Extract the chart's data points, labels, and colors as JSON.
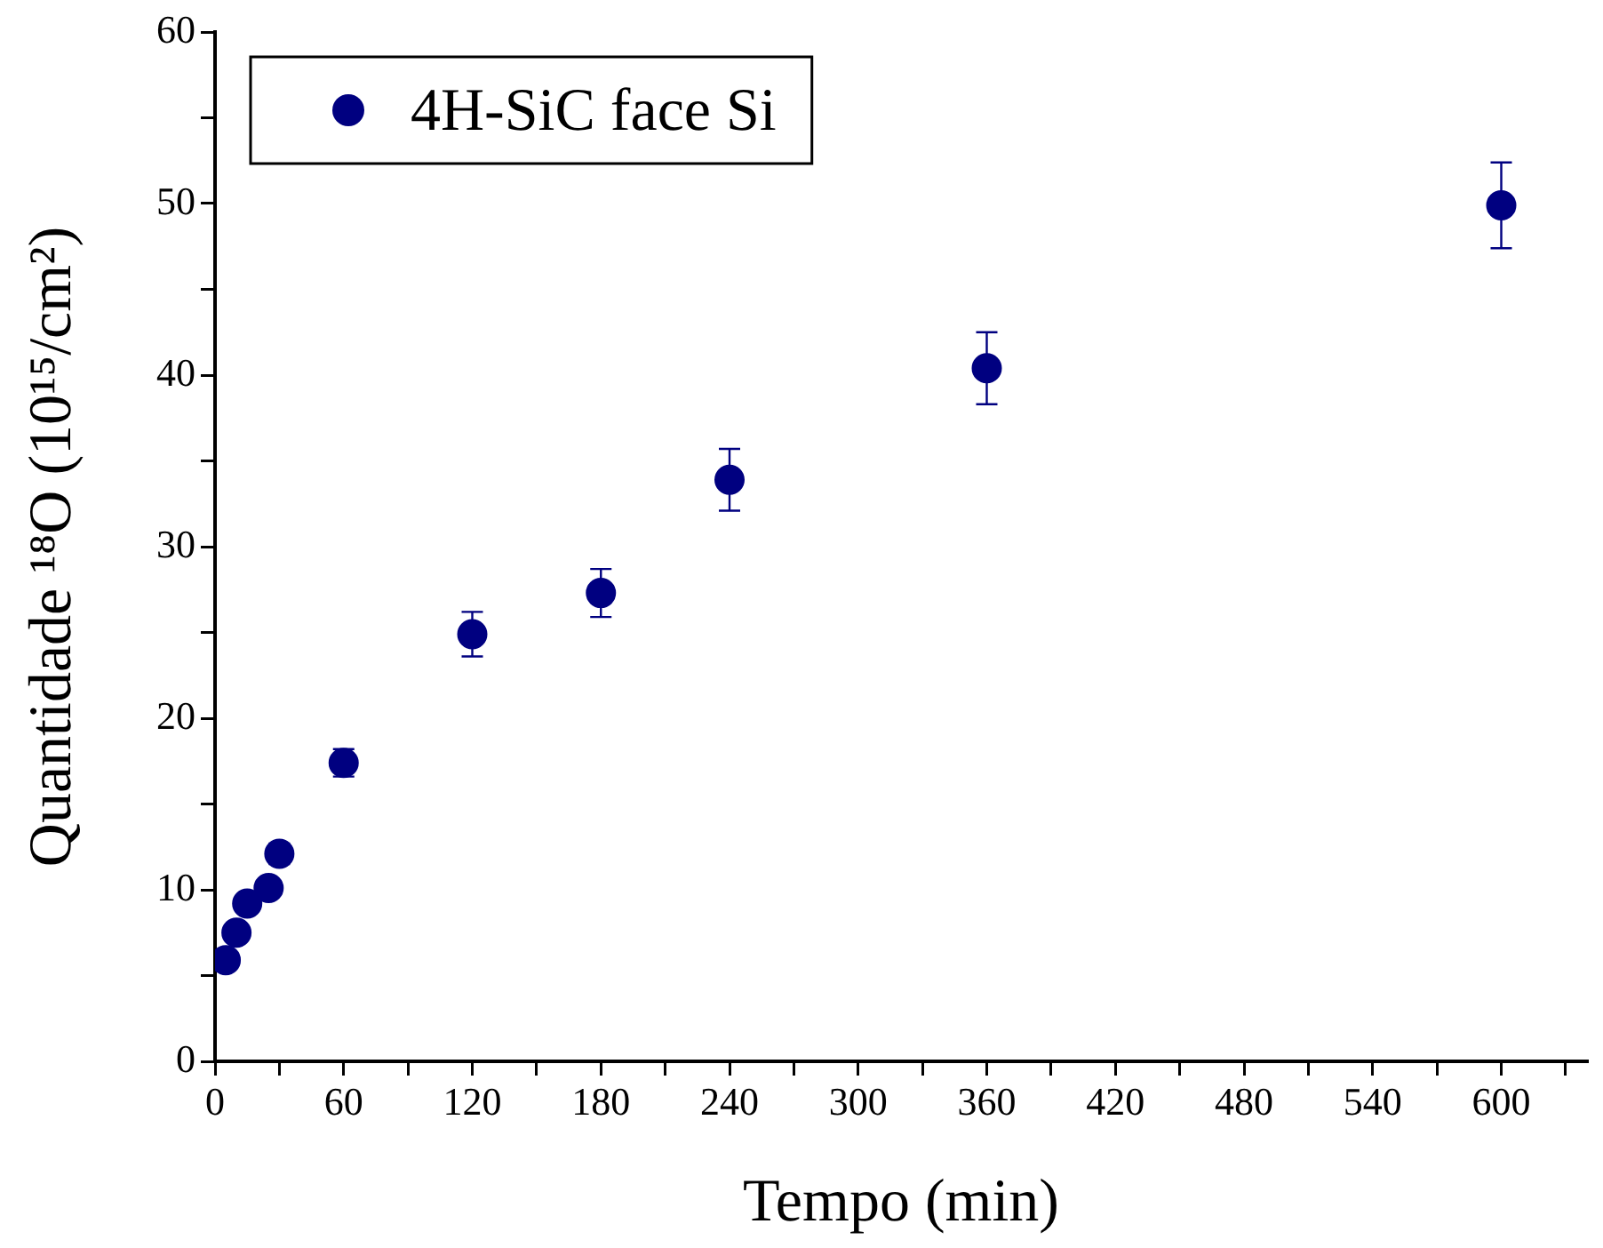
{
  "chart_data": {
    "type": "scatter",
    "xlabel": "Tempo (min)",
    "ylabel": "Quantidade ¹⁸O (10¹⁵/cm²)",
    "series": [
      {
        "name": "4H-SiC face Si",
        "color": "#000080",
        "x": [
          5,
          10,
          15,
          25,
          30,
          60,
          120,
          180,
          240,
          360,
          600
        ],
        "values": [
          5.9,
          7.5,
          9.2,
          10.1,
          12.1,
          17.4,
          24.9,
          27.3,
          33.9,
          40.4,
          49.9
        ],
        "errors": [
          null,
          null,
          null,
          null,
          0.6,
          0.8,
          1.3,
          1.4,
          1.8,
          2.1,
          2.5
        ]
      }
    ],
    "xlim": [
      0,
      640
    ],
    "xticks": [
      0,
      {
        "value": 30,
        "label": null
      },
      60,
      {
        "value": 90,
        "label": null
      },
      120,
      {
        "value": 150,
        "label": null
      },
      180,
      {
        "value": 210,
        "label": null
      },
      240,
      {
        "value": 270,
        "label": null
      },
      300,
      {
        "value": 330,
        "label": null
      },
      360,
      {
        "value": 390,
        "label": null
      },
      420,
      {
        "value": 450,
        "label": null
      },
      480,
      {
        "value": 510,
        "label": null
      },
      540,
      {
        "value": 570,
        "label": null
      },
      600,
      {
        "value": 630,
        "label": null
      }
    ],
    "ylim": [
      0,
      60
    ],
    "yticks": [
      0,
      {
        "value": 5,
        "label": null
      },
      10,
      {
        "value": 15,
        "label": null
      },
      20,
      {
        "value": 25,
        "label": null
      },
      30,
      {
        "value": 35,
        "label": null
      },
      40,
      {
        "value": 45,
        "label": null
      },
      50,
      {
        "value": 55,
        "label": null
      },
      60
    ],
    "grid": false,
    "legend": "top left",
    "marker": "circle"
  }
}
